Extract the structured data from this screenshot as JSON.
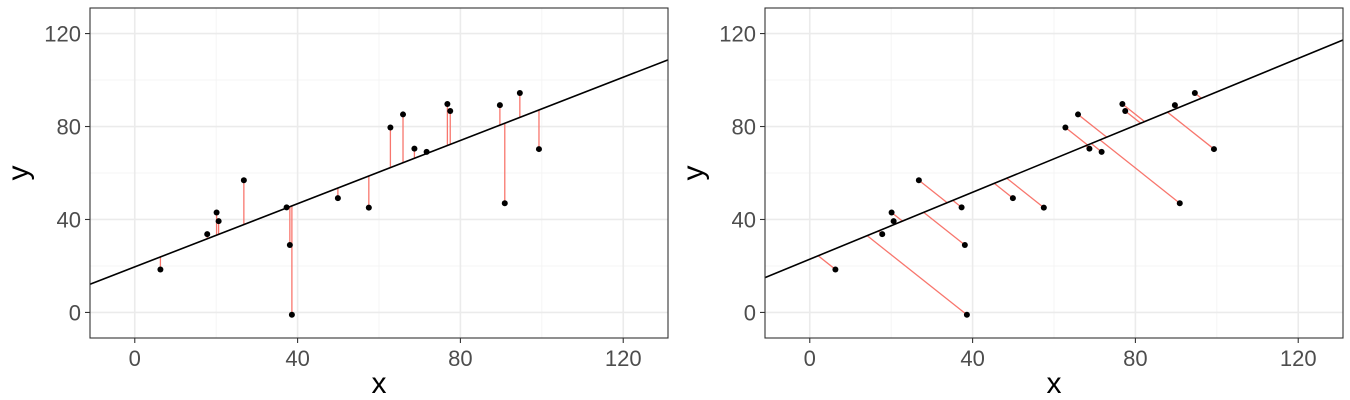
{
  "chart_data": [
    {
      "type": "scatter",
      "title": "",
      "xlabel": "x",
      "ylabel": "y",
      "xlim": [
        -11,
        131
      ],
      "ylim": [
        -11,
        131
      ],
      "x_ticks": [
        0,
        40,
        80,
        120
      ],
      "y_ticks": [
        0,
        40,
        80,
        120
      ],
      "x_tick_labels": [
        "0",
        "40",
        "80",
        "120"
      ],
      "y_tick_labels": [
        "0",
        "40",
        "80",
        "120"
      ],
      "grid": true,
      "regression_line": {
        "intercept": 19.6,
        "slope": 0.68
      },
      "residuals": "vertical",
      "points": [
        {
          "x": 6.3,
          "y": 18.5
        },
        {
          "x": 17.8,
          "y": 33.7
        },
        {
          "x": 20.1,
          "y": 43.0
        },
        {
          "x": 20.6,
          "y": 39.3
        },
        {
          "x": 26.8,
          "y": 56.9
        },
        {
          "x": 37.3,
          "y": 45.2
        },
        {
          "x": 38.1,
          "y": 29.0
        },
        {
          "x": 38.6,
          "y": -1.0
        },
        {
          "x": 49.9,
          "y": 49.2
        },
        {
          "x": 57.5,
          "y": 45.1
        },
        {
          "x": 62.8,
          "y": 79.6
        },
        {
          "x": 65.9,
          "y": 85.2
        },
        {
          "x": 68.7,
          "y": 70.5
        },
        {
          "x": 71.7,
          "y": 69.1
        },
        {
          "x": 76.8,
          "y": 89.7
        },
        {
          "x": 77.5,
          "y": 86.7
        },
        {
          "x": 89.7,
          "y": 89.2
        },
        {
          "x": 90.9,
          "y": 47.0
        },
        {
          "x": 94.6,
          "y": 94.4
        },
        {
          "x": 99.3,
          "y": 70.3
        }
      ]
    },
    {
      "type": "scatter",
      "title": "",
      "xlabel": "x",
      "ylabel": "y",
      "xlim": [
        -11,
        131
      ],
      "ylim": [
        -11,
        131
      ],
      "x_ticks": [
        0,
        40,
        80,
        120
      ],
      "y_ticks": [
        0,
        40,
        80,
        120
      ],
      "x_tick_labels": [
        "0",
        "40",
        "80",
        "120"
      ],
      "y_tick_labels": [
        "0",
        "40",
        "80",
        "120"
      ],
      "grid": true,
      "regression_line": {
        "intercept": 22.9,
        "slope": 0.72
      },
      "residuals": "perpendicular",
      "points": [
        {
          "x": 6.3,
          "y": 18.5
        },
        {
          "x": 17.8,
          "y": 33.7
        },
        {
          "x": 20.1,
          "y": 43.0
        },
        {
          "x": 20.6,
          "y": 39.3
        },
        {
          "x": 26.8,
          "y": 56.9
        },
        {
          "x": 37.3,
          "y": 45.2
        },
        {
          "x": 38.1,
          "y": 29.0
        },
        {
          "x": 38.6,
          "y": -1.0
        },
        {
          "x": 49.9,
          "y": 49.2
        },
        {
          "x": 57.5,
          "y": 45.1
        },
        {
          "x": 62.8,
          "y": 79.6
        },
        {
          "x": 65.9,
          "y": 85.2
        },
        {
          "x": 68.7,
          "y": 70.5
        },
        {
          "x": 71.7,
          "y": 69.1
        },
        {
          "x": 76.8,
          "y": 89.7
        },
        {
          "x": 77.5,
          "y": 86.7
        },
        {
          "x": 89.7,
          "y": 89.2
        },
        {
          "x": 90.9,
          "y": 47.0
        },
        {
          "x": 94.6,
          "y": 94.4
        },
        {
          "x": 99.3,
          "y": 70.3
        }
      ]
    }
  ],
  "colors": {
    "residual": "#f8766d",
    "regression_line": "#000000",
    "point": "#000000",
    "grid_major": "#ebebeb",
    "grid_minor": "#f4f4f4",
    "panel_border": "#333333"
  }
}
